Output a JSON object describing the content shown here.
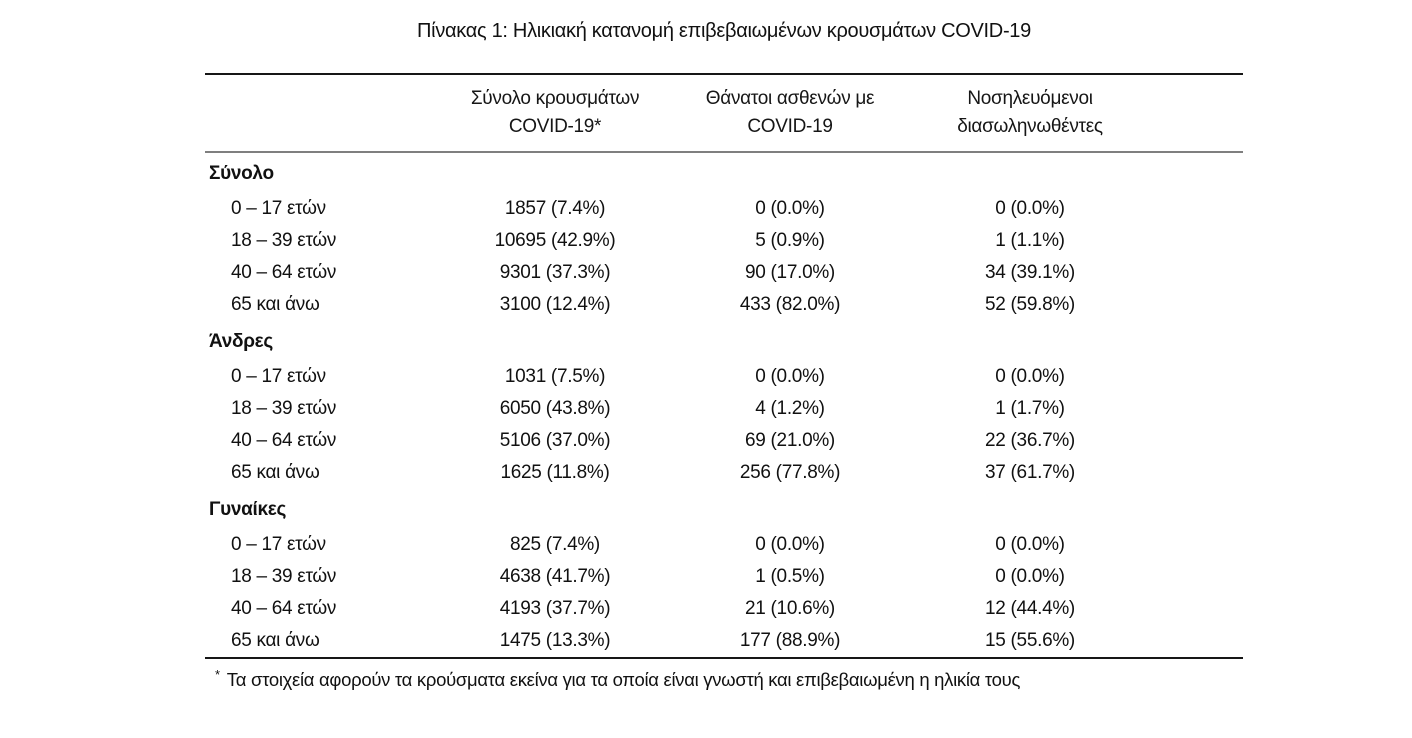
{
  "page": {
    "title": "Πίνακας 1: Ηλικιακή κατανομή επιβεβαιωμένων κρουσμάτων COVID-19"
  },
  "table": {
    "columns": [
      {
        "line1": "Σύνολο κρουσμάτων",
        "line2": "COVID-19*"
      },
      {
        "line1": "Θάνατοι ασθενών με",
        "line2": "COVID-19"
      },
      {
        "line1": "Νοσηλευόμενοι",
        "line2": "διασωληνωθέντες"
      }
    ],
    "sections": [
      {
        "label": "Σύνολο",
        "rows": [
          {
            "age": "0 – 17 ετών",
            "cases": "1857 (7.4%)",
            "deaths": "0 (0.0%)",
            "intubated": "0 (0.0%)"
          },
          {
            "age": "18 – 39 ετών",
            "cases": "10695 (42.9%)",
            "deaths": "5 (0.9%)",
            "intubated": "1 (1.1%)"
          },
          {
            "age": "40 – 64 ετών",
            "cases": "9301 (37.3%)",
            "deaths": "90 (17.0%)",
            "intubated": "34 (39.1%)"
          },
          {
            "age": "65 και άνω",
            "cases": "3100 (12.4%)",
            "deaths": "433 (82.0%)",
            "intubated": "52 (59.8%)"
          }
        ]
      },
      {
        "label": "Άνδρες",
        "rows": [
          {
            "age": "0 – 17 ετών",
            "cases": "1031 (7.5%)",
            "deaths": "0 (0.0%)",
            "intubated": "0 (0.0%)"
          },
          {
            "age": "18 – 39 ετών",
            "cases": "6050 (43.8%)",
            "deaths": "4 (1.2%)",
            "intubated": "1 (1.7%)"
          },
          {
            "age": "40 – 64 ετών",
            "cases": "5106 (37.0%)",
            "deaths": "69 (21.0%)",
            "intubated": "22 (36.7%)"
          },
          {
            "age": "65 και άνω",
            "cases": "1625 (11.8%)",
            "deaths": "256 (77.8%)",
            "intubated": "37 (61.7%)"
          }
        ]
      },
      {
        "label": "Γυναίκες",
        "rows": [
          {
            "age": "0 – 17 ετών",
            "cases": "825 (7.4%)",
            "deaths": "0 (0.0%)",
            "intubated": "0 (0.0%)"
          },
          {
            "age": "18 – 39 ετών",
            "cases": "4638 (41.7%)",
            "deaths": "1 (0.5%)",
            "intubated": "0 (0.0%)"
          },
          {
            "age": "40 – 64 ετών",
            "cases": "4193 (37.7%)",
            "deaths": "21 (10.6%)",
            "intubated": "12 (44.4%)"
          },
          {
            "age": "65 και άνω",
            "cases": "1475 (13.3%)",
            "deaths": "177 (88.9%)",
            "intubated": "15 (55.6%)"
          }
        ]
      }
    ],
    "footnote": {
      "marker": "*",
      "text": "Τα στοιχεία αφορούν τα κρούσματα εκείνα για τα οποία είναι γνωστή και επιβεβαιωμένη η ηλικία τους"
    }
  },
  "colors": {
    "background": "#ffffff",
    "text": "#111111",
    "rule_strong": "#161616",
    "rule_light": "#7f7f7f"
  }
}
